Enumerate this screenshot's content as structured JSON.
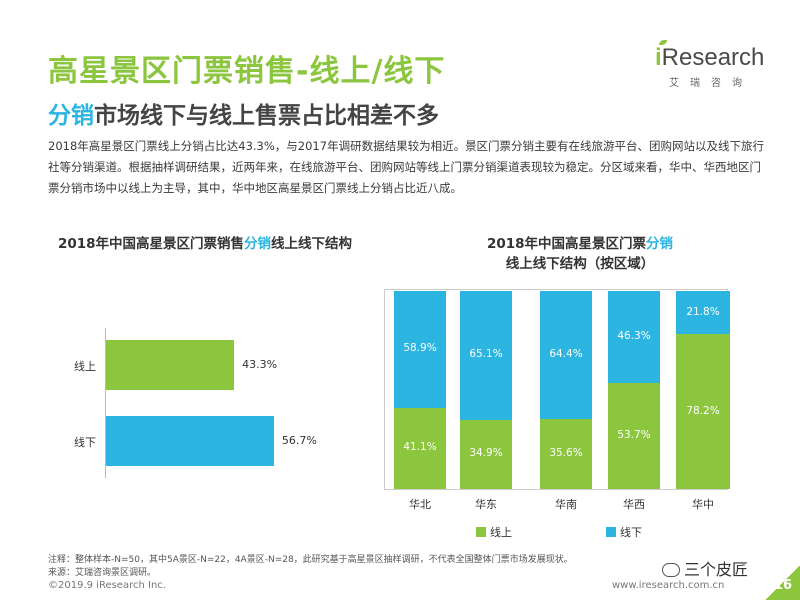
{
  "header": {
    "title": "高星景区门票销售-线上/线下",
    "subtitle_highlight": "分销",
    "subtitle_rest": "市场线下与线上售票占比相差不多"
  },
  "logo": {
    "i": "i",
    "name": "Research",
    "sub": "艾瑞咨询"
  },
  "paragraph": "2018年高星景区门票线上分销占比达43.3%，与2017年调研数据结果较为相近。景区门票分销主要有在线旅游平台、团购网站以及线下旅行社等分销渠道。根据抽样调研结果，近两年来，在线旅游平台、团购网站等线上门票分销渠道表现较为稳定。分区域来看，华中、华西地区门票分销市场中以线上为主导，其中，华中地区高星景区门票线上分销占比近八成。",
  "left_chart": {
    "title_a": "2018年中国高星景区门票销售",
    "title_hl": "分销",
    "title_b": "线上线下结构"
  },
  "right_chart": {
    "title_a": "2018年中国高星景区门票",
    "title_hl": "分销",
    "title_b": "线上线下结构（按区域）"
  },
  "legend": {
    "online": "线上",
    "offline": "线下"
  },
  "chart_data": [
    {
      "type": "bar",
      "orientation": "horizontal",
      "title": "2018年中国高星景区门票销售分销线上线下结构",
      "categories": [
        "线上",
        "线下"
      ],
      "values": [
        43.3,
        56.7
      ],
      "value_labels": [
        "43.3%",
        "56.7%"
      ],
      "colors": [
        "#8cc63f",
        "#2bb5e0"
      ]
    },
    {
      "type": "bar",
      "stacked": true,
      "percent": true,
      "title": "2018年中国高星景区门票分销线上线下结构（按区域）",
      "categories": [
        "华北",
        "华东",
        "华南",
        "华西",
        "华中"
      ],
      "series": [
        {
          "name": "线上",
          "color": "#8cc63f",
          "values": [
            41.1,
            34.9,
            35.6,
            53.7,
            78.2
          ],
          "labels": [
            "41.1%",
            "34.9%",
            "35.6%",
            "53.7%",
            "78.2%"
          ]
        },
        {
          "name": "线下",
          "color": "#2bb5e0",
          "values": [
            58.9,
            65.1,
            64.4,
            46.3,
            21.8
          ],
          "labels": [
            "58.9%",
            "65.1%",
            "64.4%",
            "46.3%",
            "21.8%"
          ]
        }
      ],
      "legend_position": "bottom"
    }
  ],
  "notes": {
    "note": "注释：整体样本-N=50，其中5A景区-N=22，4A景区-N=28，此研究基于高星景区抽样调研，不代表全国整体门票市场发展现状。",
    "source": "来源：艾瑞咨询景区调研。"
  },
  "footer": {
    "copyright": "©2019.9 iResearch Inc.",
    "url": "www.iresearch.com.cn",
    "page": "16",
    "wechat": "三个皮匠"
  }
}
